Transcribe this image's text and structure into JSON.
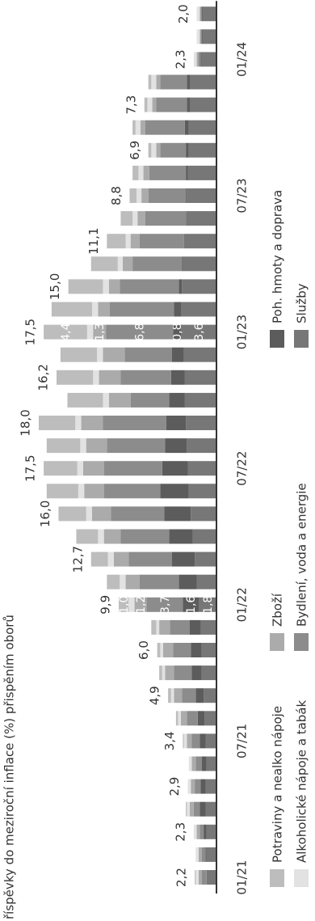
{
  "chart_data": {
    "type": "stacked-bar",
    "title": "říspěvky do meziroční inflace (%) přispěním oborů",
    "categories": [
      "01/21",
      null,
      null,
      null,
      null,
      null,
      "07/21",
      null,
      null,
      null,
      null,
      null,
      "01/22",
      null,
      null,
      null,
      null,
      null,
      "07/22",
      null,
      null,
      null,
      null,
      null,
      "01/23",
      null,
      null,
      null,
      null,
      null,
      "07/23",
      null,
      null,
      null,
      null,
      null,
      "01/24",
      null,
      null
    ],
    "ylim": [
      0,
      18
    ],
    "totals": [
      2.2,
      null,
      2.3,
      null,
      2.9,
      null,
      3.4,
      null,
      4.9,
      null,
      6.0,
      null,
      9.9,
      null,
      12.7,
      null,
      16.0,
      null,
      17.5,
      null,
      18.0,
      null,
      16.2,
      null,
      17.5,
      null,
      15.0,
      null,
      11.1,
      null,
      8.8,
      null,
      6.9,
      null,
      7.3,
      null,
      2.3,
      null,
      2.0
    ],
    "total_labels": [
      "2,2",
      null,
      "2,3",
      null,
      "2,9",
      null,
      "3,4",
      null,
      "4,9",
      null,
      "6,0",
      null,
      "9,9",
      null,
      "12,7",
      null,
      "16,0",
      null,
      "17,5",
      null,
      "18,0",
      null,
      "16,2",
      null,
      "17,5",
      null,
      "15,0",
      null,
      "11,1",
      null,
      "8,8",
      null,
      "6,9",
      null,
      "7,3",
      null,
      "2,3",
      null,
      "2,0"
    ],
    "series": [
      {
        "name": "Služby",
        "color": "#777777",
        "values": [
          1.0,
          1.0,
          1.0,
          1.1,
          1.1,
          1.0,
          1.1,
          1.2,
          1.3,
          1.5,
          1.5,
          1.6,
          1.8,
          2.0,
          2.2,
          2.4,
          2.6,
          2.8,
          2.9,
          3.0,
          3.1,
          3.2,
          3.2,
          3.3,
          3.6,
          3.6,
          3.5,
          3.4,
          3.3,
          3.1,
          3.0,
          2.9,
          2.8,
          2.8,
          2.7,
          2.7,
          1.5,
          1.4,
          1.4
        ],
        "value_labels": [
          null,
          null,
          null,
          null,
          null,
          null,
          null,
          null,
          null,
          null,
          null,
          null,
          "1,8",
          null,
          null,
          null,
          null,
          null,
          null,
          null,
          null,
          null,
          null,
          null,
          "3,6",
          null,
          null,
          null,
          null,
          null,
          null,
          null,
          null,
          null,
          null,
          null,
          null,
          null,
          null
        ]
      },
      {
        "name": "Poh. hmoty a doprava",
        "color": "#5c5c5c",
        "values": [
          0.0,
          0.1,
          0.3,
          0.6,
          0.5,
          0.5,
          0.6,
          0.7,
          0.8,
          1.0,
          1.1,
          1.1,
          1.6,
          1.8,
          2.3,
          2.4,
          2.7,
          2.9,
          2.6,
          2.2,
          2.0,
          1.6,
          1.4,
          1.2,
          0.8,
          0.7,
          0.3,
          0.1,
          0.0,
          0.0,
          0.1,
          0.2,
          0.3,
          0.4,
          0.3,
          0.3,
          0.1,
          0.1,
          0.1
        ],
        "value_labels": [
          null,
          null,
          null,
          null,
          null,
          null,
          null,
          null,
          null,
          null,
          null,
          null,
          "1,6",
          null,
          null,
          null,
          null,
          null,
          null,
          null,
          null,
          null,
          null,
          null,
          "0,8",
          null,
          null,
          null,
          null,
          null,
          null,
          null,
          null,
          null,
          null,
          null,
          null,
          null,
          null
        ]
      },
      {
        "name": "Bydlení, voda a energie",
        "color": "#8c8c8c",
        "values": [
          0.5,
          0.4,
          0.4,
          0.6,
          0.6,
          0.6,
          0.8,
          1.1,
          1.4,
          1.8,
          1.8,
          2.0,
          3.7,
          4.0,
          4.4,
          4.9,
          5.4,
          5.7,
          5.9,
          5.9,
          6.4,
          3.9,
          5.1,
          4.8,
          6.8,
          6.5,
          6.0,
          5.0,
          4.5,
          4.1,
          3.8,
          3.7,
          2.6,
          4.0,
          3.1,
          2.7,
          0.2,
          0.1,
          0.1
        ],
        "value_labels": [
          null,
          null,
          null,
          null,
          null,
          null,
          null,
          null,
          null,
          null,
          null,
          null,
          "3,7",
          null,
          null,
          null,
          null,
          null,
          null,
          null,
          null,
          null,
          null,
          null,
          "6,8",
          null,
          null,
          null,
          null,
          null,
          null,
          null,
          null,
          null,
          null,
          null,
          null,
          null,
          null
        ]
      },
      {
        "name": "Zboží",
        "color": "#ababab",
        "values": [
          0.3,
          0.3,
          0.3,
          0.4,
          0.4,
          0.4,
          0.5,
          0.6,
          0.8,
          0.9,
          1.0,
          1.1,
          1.2,
          1.4,
          1.5,
          1.7,
          1.9,
          2.0,
          2.1,
          2.1,
          2.2,
          2.2,
          2.2,
          2.2,
          1.3,
          1.2,
          1.1,
          1.0,
          0.9,
          0.8,
          0.7,
          0.6,
          0.4,
          0.5,
          0.4,
          0.4,
          0.2,
          0.1,
          0.1
        ],
        "value_labels": [
          null,
          null,
          null,
          null,
          null,
          null,
          null,
          null,
          null,
          null,
          null,
          null,
          "1,2",
          null,
          null,
          null,
          null,
          null,
          null,
          null,
          null,
          null,
          null,
          null,
          "1,3",
          null,
          null,
          null,
          null,
          null,
          null,
          null,
          null,
          null,
          null,
          null,
          null,
          null,
          null
        ]
      },
      {
        "name": "Alkoholické nápoje a tabák",
        "color": "#e2e2e2",
        "values": [
          0.3,
          0.3,
          0.3,
          0.3,
          0.3,
          0.3,
          0.3,
          0.3,
          0.3,
          0.3,
          0.3,
          0.3,
          0.6,
          0.6,
          0.6,
          0.6,
          0.6,
          0.6,
          0.6,
          0.6,
          0.6,
          0.6,
          0.6,
          0.6,
          0.6,
          0.6,
          0.6,
          0.5,
          0.5,
          0.5,
          0.5,
          0.5,
          0.5,
          0.5,
          0.5,
          0.5,
          0.3,
          0.3,
          0.3
        ]
      },
      {
        "name": "Potraviny a nealko nápoje",
        "color": "#bdbdbd",
        "values": [
          0.1,
          0.0,
          0.0,
          0.1,
          0.0,
          0.0,
          0.1,
          0.2,
          0.3,
          0.3,
          0.3,
          0.5,
          1.0,
          1.3,
          1.7,
          2.2,
          2.8,
          3.2,
          3.4,
          3.4,
          3.7,
          3.6,
          3.7,
          3.7,
          4.4,
          4.1,
          3.5,
          2.7,
          1.9,
          1.2,
          0.7,
          0.6,
          0.3,
          0.3,
          0.3,
          0.3,
          0.0,
          0.0,
          0.0
        ],
        "value_labels": [
          null,
          null,
          null,
          null,
          null,
          null,
          null,
          null,
          null,
          null,
          null,
          null,
          "1,0",
          null,
          null,
          null,
          null,
          null,
          null,
          null,
          null,
          null,
          null,
          null,
          "4,4",
          null,
          null,
          null,
          null,
          null,
          null,
          null,
          null,
          null,
          null,
          null,
          null,
          null,
          null
        ]
      }
    ]
  }
}
